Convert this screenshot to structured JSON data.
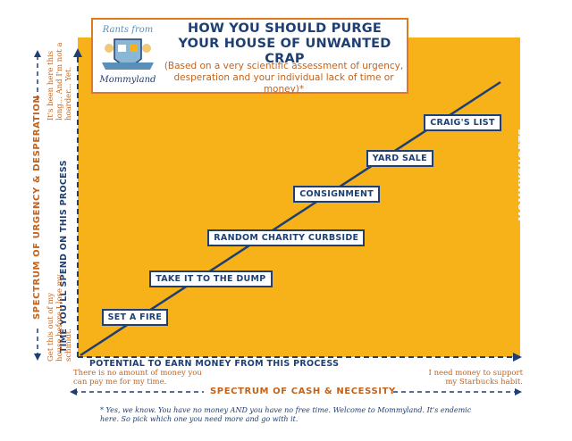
{
  "header": {
    "logo_text_top": "Rants from",
    "logo_text_bottom": "Mommyland",
    "title": "HOW YOU SHOULD PURGE YOUR HOUSE OF UNWANTED CRAP",
    "subtitle": "(Based on a very scientific assessment of urgency, desperation and your individual lack of time or money)*"
  },
  "axes": {
    "x_label": "POTENTIAL TO EARN MONEY FROM THIS PROCESS",
    "x_low_note": "There is no amount of money you can pay me for my time.",
    "x_high_note": "I need money to support my Starbucks habit.",
    "x_spectrum": "SPECTRUM OF CASH & NECESSITY",
    "y_label": "TIME YOU'LL SPEND ON THIS PROCESS",
    "y_spectrum": "SPECTRUM OF URGENCY & DESPERATION",
    "y_low_note": "Get this out of my house before I lose my schmidt.",
    "y_high_note": "It's been here this long... And I'm not a hoarder... Yet."
  },
  "credit": {
    "prefix": "CHART MADE PRESENTABLE BY ",
    "site": "MOMMYSHORTS",
    "suffix": ".com"
  },
  "footnote": "* Yes, we know. You have no money AND you have no free time. Welcome to Mommyland. It's endemic here. So pick which one you need more and go with it.",
  "colors": {
    "plot_bg": "#f7b21a",
    "navy": "#1e3f73",
    "orange_text": "#c4621a",
    "border": "#e07a1f"
  },
  "chart_data": {
    "type": "line",
    "title": "HOW YOU SHOULD PURGE YOUR HOUSE OF UNWANTED CRAP",
    "xlabel": "POTENTIAL TO EARN MONEY FROM THIS PROCESS",
    "ylabel": "TIME YOU'LL SPEND ON THIS PROCESS",
    "xlim": [
      0,
      10
    ],
    "ylim": [
      0,
      10
    ],
    "grid": false,
    "series": [
      {
        "values": [
          {
            "x": 0,
            "y": 0
          },
          {
            "x": 10,
            "y": 10
          }
        ]
      }
    ],
    "annotations": [
      {
        "label": "SET A FIRE",
        "x": 1.3,
        "y": 1.4
      },
      {
        "label": "TAKE IT TO THE DUMP",
        "x": 3.1,
        "y": 2.8
      },
      {
        "label": "RANDOM CHARITY CURBSIDE",
        "x": 4.9,
        "y": 4.3
      },
      {
        "label": "CONSIGNMENT",
        "x": 6.1,
        "y": 5.9
      },
      {
        "label": "YARD SALE",
        "x": 7.6,
        "y": 7.2
      },
      {
        "label": "CRAIG'S LIST",
        "x": 9.1,
        "y": 8.5
      }
    ]
  }
}
